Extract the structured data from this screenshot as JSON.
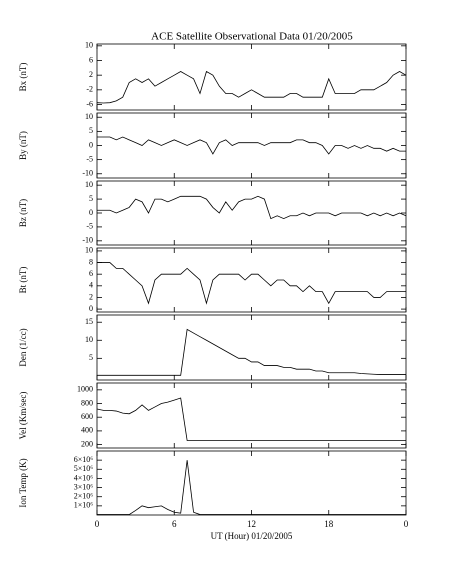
{
  "chart_data": [
    {
      "type": "line",
      "title": "ACE Satellite Observational Data   01/20/2005",
      "ylabel": "Bx (nT)",
      "color": "#000000",
      "x": [
        0,
        0.5,
        1,
        1.5,
        2,
        2.5,
        3,
        3.5,
        4,
        4.5,
        5,
        5.5,
        6,
        6.5,
        7,
        7.5,
        8,
        8.5,
        9,
        9.5,
        10,
        10.5,
        11,
        11.5,
        12,
        12.5,
        13,
        13.5,
        14,
        14.5,
        15,
        15.5,
        16,
        16.5,
        17,
        17.5,
        18,
        18.5,
        19,
        19.5,
        20,
        20.5,
        21,
        21.5,
        22,
        22.5,
        23,
        23.5,
        24
      ],
      "values": [
        -5.5,
        -5.6,
        -5.5,
        -5,
        -4,
        0,
        1,
        0,
        1,
        -1,
        0,
        1,
        2,
        3,
        2,
        1,
        -3,
        3,
        2,
        -1,
        -3,
        -3,
        -4,
        -3,
        -2,
        -3,
        -4,
        -4,
        -4,
        -4,
        -3,
        -3,
        -4,
        -4,
        -4,
        -4,
        1,
        -3,
        -3,
        -3,
        -3,
        -2,
        -2,
        -2,
        -1,
        0,
        2,
        3,
        2
      ],
      "xlim": [
        0,
        24
      ],
      "ylim": [
        -7.5,
        10.5
      ],
      "yticks": [
        10,
        6,
        2,
        -2,
        -6
      ]
    },
    {
      "type": "line",
      "ylabel": "By (nT)",
      "color": "#000000",
      "x": [
        0,
        0.5,
        1,
        1.5,
        2,
        2.5,
        3,
        3.5,
        4,
        4.5,
        5,
        5.5,
        6,
        6.5,
        7,
        7.5,
        8,
        8.5,
        9,
        9.5,
        10,
        10.5,
        11,
        11.5,
        12,
        12.5,
        13,
        13.5,
        14,
        14.5,
        15,
        15.5,
        16,
        16.5,
        17,
        17.5,
        18,
        18.5,
        19,
        19.5,
        20,
        20.5,
        21,
        21.5,
        22,
        22.5,
        23,
        23.5,
        24
      ],
      "values": [
        3,
        3,
        3,
        2,
        3,
        2,
        1,
        0,
        2,
        1,
        0,
        1,
        2,
        1,
        0,
        1,
        2,
        1,
        -3,
        1,
        2,
        0,
        1,
        1,
        1,
        1,
        0,
        1,
        1,
        1,
        1,
        2,
        2,
        1,
        1,
        0,
        -3,
        0,
        0,
        -1,
        0,
        -1,
        0,
        -1,
        -1,
        -2,
        -1,
        -2,
        -2
      ],
      "xlim": [
        0,
        24
      ],
      "ylim": [
        -11.5,
        11.5
      ],
      "yticks": [
        10,
        5,
        0,
        -5,
        -10
      ]
    },
    {
      "type": "line",
      "ylabel": "Bz (nT)",
      "color": "#000000",
      "x": [
        0,
        0.5,
        1,
        1.5,
        2,
        2.5,
        3,
        3.5,
        4,
        4.5,
        5,
        5.5,
        6,
        6.5,
        7,
        7.5,
        8,
        8.5,
        9,
        9.5,
        10,
        10.5,
        11,
        11.5,
        12,
        12.5,
        13,
        13.5,
        14,
        14.5,
        15,
        15.5,
        16,
        16.5,
        17,
        17.5,
        18,
        18.5,
        19,
        19.5,
        20,
        20.5,
        21,
        21.5,
        22,
        22.5,
        23,
        23.5,
        24
      ],
      "values": [
        1,
        1,
        1,
        0,
        1,
        2,
        5,
        4,
        0,
        5,
        5,
        4,
        5,
        6,
        6,
        6,
        6,
        5,
        2,
        0,
        4,
        1,
        4,
        5,
        5,
        6,
        5,
        -2,
        -1,
        -2,
        -1,
        -1,
        0,
        -1,
        0,
        0,
        0,
        -1,
        0,
        0,
        0,
        0,
        -1,
        0,
        -1,
        0,
        -1,
        0,
        -1
      ],
      "xlim": [
        0,
        24
      ],
      "ylim": [
        -11.5,
        11.5
      ],
      "yticks": [
        10,
        5,
        0,
        -5,
        -10
      ]
    },
    {
      "type": "line",
      "ylabel": "Bt (nT)",
      "color": "#000000",
      "x": [
        0,
        0.5,
        1,
        1.5,
        2,
        2.5,
        3,
        3.5,
        4,
        4.5,
        5,
        5.5,
        6,
        6.5,
        7,
        7.5,
        8,
        8.5,
        9,
        9.5,
        10,
        10.5,
        11,
        11.5,
        12,
        12.5,
        13,
        13.5,
        14,
        14.5,
        15,
        15.5,
        16,
        16.5,
        17,
        17.5,
        18,
        18.5,
        19,
        19.5,
        20,
        20.5,
        21,
        21.5,
        22,
        22.5,
        23,
        23.5,
        24
      ],
      "values": [
        8,
        8,
        8,
        7,
        7,
        6,
        5,
        4,
        1,
        5,
        6,
        6,
        6,
        6,
        7,
        6,
        5,
        1,
        5,
        6,
        6,
        6,
        6,
        5,
        6,
        6,
        5,
        4,
        5,
        5,
        4,
        4,
        3,
        4,
        3,
        3,
        1,
        3,
        3,
        3,
        3,
        3,
        3,
        2,
        2,
        3,
        3,
        3,
        3
      ],
      "xlim": [
        0,
        24
      ],
      "ylim": [
        -0.5,
        10.5
      ],
      "yticks": [
        10,
        8,
        6,
        4,
        2,
        0
      ]
    },
    {
      "type": "line",
      "ylabel": "Den (1/cc)",
      "color": "#000000",
      "x": [
        0,
        0.5,
        1,
        1.5,
        2,
        2.5,
        3,
        3.5,
        4,
        4.5,
        5,
        5.5,
        6,
        6.5,
        7,
        7.5,
        8,
        8.5,
        9,
        9.5,
        10,
        10.5,
        11,
        11.5,
        12,
        12.5,
        13,
        13.5,
        14,
        14.5,
        15,
        15.5,
        16,
        16.5,
        17,
        17.5,
        18,
        18.5,
        19,
        19.5,
        20,
        20.5,
        21,
        21.5,
        22,
        22.5,
        23,
        23.5,
        24
      ],
      "values": [
        0.3,
        0.3,
        0.3,
        0.3,
        0.3,
        0.3,
        0.3,
        0.3,
        0.3,
        0.3,
        0.3,
        0.3,
        0.3,
        0.3,
        13,
        12,
        11,
        10,
        9,
        8,
        7,
        6,
        5,
        5,
        4,
        4,
        3,
        3,
        3,
        2.5,
        2.5,
        2,
        2,
        2,
        1.5,
        1.5,
        1,
        1,
        1,
        1,
        1,
        0.8,
        0.7,
        0.6,
        0.5,
        0.5,
        0.5,
        0.5,
        0.5
      ],
      "xlim": [
        0,
        24
      ],
      "ylim": [
        -1,
        17
      ],
      "yticks": [
        15,
        10,
        5
      ]
    },
    {
      "type": "line",
      "ylabel": "Vel (Km/sec)",
      "color": "#000000",
      "x": [
        0,
        0.5,
        1,
        1.5,
        2,
        2.5,
        3,
        3.5,
        4,
        4.5,
        5,
        5.5,
        6,
        6.5,
        7,
        7.5,
        8,
        8.5,
        9,
        9.5,
        10,
        10.5,
        11,
        11.5,
        12,
        12.5,
        13,
        13.5,
        14,
        14.5,
        15,
        15.5,
        16,
        16.5,
        17,
        17.5,
        18,
        18.5,
        19,
        19.5,
        20,
        20.5,
        21,
        21.5,
        22,
        22.5,
        23,
        23.5,
        24
      ],
      "values": [
        720,
        700,
        700,
        690,
        660,
        650,
        700,
        780,
        700,
        750,
        800,
        820,
        850,
        880,
        260,
        260,
        260,
        260,
        260,
        260,
        260,
        260,
        260,
        260,
        260,
        260,
        260,
        260,
        260,
        260,
        260,
        260,
        260,
        260,
        260,
        260,
        260,
        260,
        260,
        260,
        260,
        260,
        260,
        260,
        260,
        260,
        260,
        260,
        260
      ],
      "xlim": [
        0,
        24
      ],
      "ylim": [
        150,
        1100
      ],
      "yticks": [
        1000,
        800,
        600,
        400,
        200
      ]
    },
    {
      "type": "line",
      "ylabel": "Ion Temp (K)",
      "xlabel": "UT (Hour)   01/20/2005",
      "color": "#000000",
      "x": [
        0,
        0.5,
        1,
        1.5,
        2,
        2.5,
        3,
        3.5,
        4,
        4.5,
        5,
        5.5,
        6,
        6.5,
        7,
        7.5,
        8,
        8.5,
        9,
        9.5,
        10,
        10.5,
        11,
        11.5,
        12,
        12.5,
        13,
        13.5,
        14,
        14.5,
        15,
        15.5,
        16,
        16.5,
        17,
        17.5,
        18,
        18.5,
        19,
        19.5,
        20,
        20.5,
        21,
        21.5,
        22,
        22.5,
        23,
        23.5,
        24
      ],
      "values": [
        50000,
        50000,
        50000,
        50000,
        50000,
        50000,
        500000,
        1000000,
        800000,
        900000,
        1000000,
        600000,
        300000,
        200000,
        6000000,
        300000,
        50000,
        50000,
        50000,
        50000,
        50000,
        50000,
        50000,
        50000,
        50000,
        50000,
        50000,
        50000,
        50000,
        50000,
        50000,
        50000,
        50000,
        50000,
        50000,
        50000,
        50000,
        50000,
        50000,
        50000,
        50000,
        50000,
        50000,
        50000,
        50000,
        50000,
        50000,
        50000,
        50000
      ],
      "xlim": [
        0,
        24
      ],
      "ylim": [
        0,
        7000000
      ],
      "yticks": [
        {
          "value": 1000000,
          "label": "1×10⁶"
        },
        {
          "value": 2000000,
          "label": "2×10⁶"
        },
        {
          "value": 3000000,
          "label": "3×10⁶"
        },
        {
          "value": 4000000,
          "label": "4×10⁶"
        },
        {
          "value": 5000000,
          "label": "5×10⁶"
        },
        {
          "value": 6000000,
          "label": "6×10⁶"
        }
      ],
      "xticks": [
        0,
        6,
        12,
        18,
        {
          "value": 24,
          "label": "0"
        }
      ]
    }
  ]
}
